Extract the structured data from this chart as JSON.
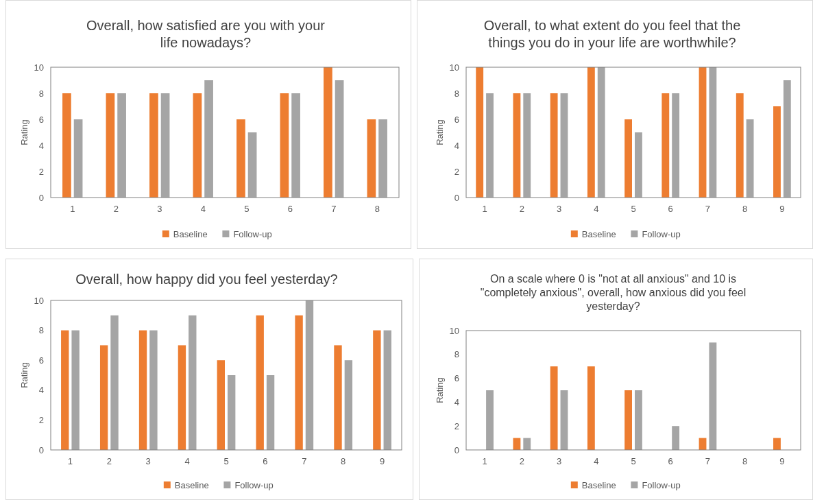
{
  "chart_data": [
    {
      "type": "bar",
      "title": "Overall, how satisfied are you with your life nowadays?",
      "ylabel": "Rating",
      "categories": [
        "1",
        "2",
        "3",
        "4",
        "5",
        "6",
        "7",
        "8"
      ],
      "series": [
        {
          "name": "Baseline",
          "color": "#ed7d31",
          "values": [
            8,
            8,
            8,
            8,
            6,
            8,
            10,
            6
          ]
        },
        {
          "name": "Follow-up",
          "color": "#a5a5a5",
          "values": [
            6,
            8,
            8,
            9,
            5,
            8,
            9,
            6
          ]
        }
      ],
      "ylim": [
        0,
        10
      ],
      "yticks": [
        0,
        2,
        4,
        6,
        8,
        10
      ],
      "grid": false,
      "legend": "bottom"
    },
    {
      "type": "bar",
      "title": "Overall, to what extent do you feel that the things you do in your life are worthwhile?",
      "ylabel": "Rating",
      "categories": [
        "1",
        "2",
        "3",
        "4",
        "5",
        "6",
        "7",
        "8",
        "9"
      ],
      "series": [
        {
          "name": "Baseline",
          "color": "#ed7d31",
          "values": [
            10,
            8,
            8,
            10,
            6,
            8,
            10,
            8,
            7
          ]
        },
        {
          "name": "Follow-up",
          "color": "#a5a5a5",
          "values": [
            8,
            8,
            8,
            10,
            5,
            8,
            10,
            6,
            9
          ]
        }
      ],
      "ylim": [
        0,
        10
      ],
      "yticks": [
        0,
        2,
        4,
        6,
        8,
        10
      ],
      "grid": false,
      "legend": "bottom"
    },
    {
      "type": "bar",
      "title": "Overall, how happy did you feel yesterday?",
      "ylabel": "Rating",
      "categories": [
        "1",
        "2",
        "3",
        "4",
        "5",
        "6",
        "7",
        "8",
        "9"
      ],
      "series": [
        {
          "name": "Baseline",
          "color": "#ed7d31",
          "values": [
            8,
            7,
            8,
            7,
            6,
            9,
            9,
            7,
            8
          ]
        },
        {
          "name": "Follow-up",
          "color": "#a5a5a5",
          "values": [
            8,
            9,
            8,
            9,
            5,
            5,
            10,
            6,
            8
          ]
        }
      ],
      "ylim": [
        0,
        10
      ],
      "yticks": [
        0,
        2,
        4,
        6,
        8,
        10
      ],
      "grid": false,
      "legend": "bottom"
    },
    {
      "type": "bar",
      "title": "On a scale where 0 is \"not at all anxious\" and 10 is \"completely anxious\", overall, how anxious did you feel yesterday?",
      "ylabel": "Rating",
      "categories": [
        "1",
        "2",
        "3",
        "4",
        "5",
        "6",
        "7",
        "8",
        "9"
      ],
      "series": [
        {
          "name": "Baseline",
          "color": "#ed7d31",
          "values": [
            0,
            1,
            7,
            7,
            5,
            0,
            1,
            0,
            1
          ]
        },
        {
          "name": "Follow-up",
          "color": "#a5a5a5",
          "values": [
            5,
            1,
            5,
            0,
            5,
            2,
            9,
            0,
            0
          ]
        }
      ],
      "ylim": [
        0,
        10
      ],
      "yticks": [
        0,
        2,
        4,
        6,
        8,
        10
      ],
      "grid": false,
      "legend": "bottom"
    }
  ]
}
